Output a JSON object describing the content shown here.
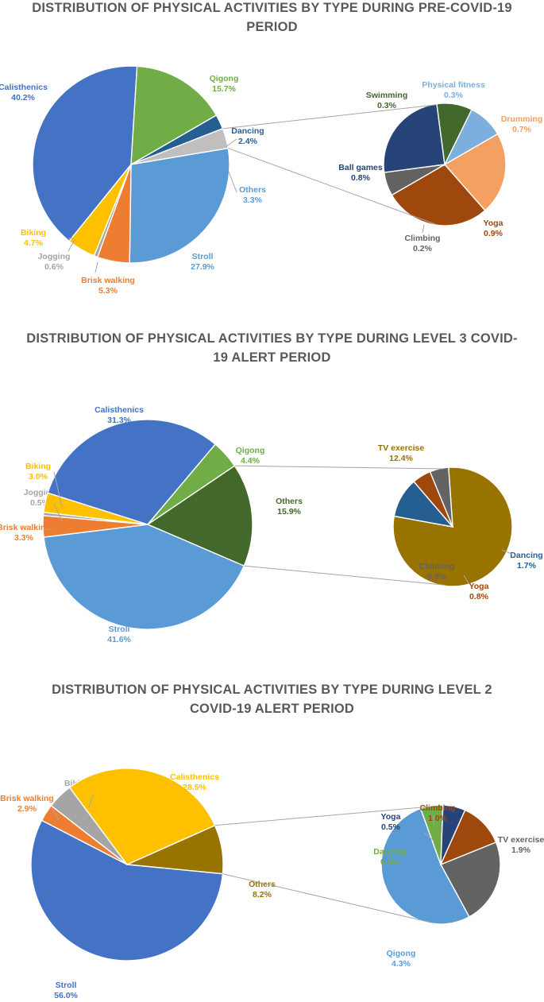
{
  "chart_data": [
    {
      "type": "pie",
      "subtype": "pie-of-pie",
      "title": "DISTRIBUTION OF PHYSICAL ACTIVITIES BY TYPE DURING PRE-COVID-19 PERIOD",
      "title_lines": [
        "DISTRIBUTION OF PHYSICAL ACTIVITIES BY TYPE DURING PRE-COVID-19",
        "PERIOD"
      ],
      "main_slices": [
        {
          "label": "Dancing",
          "value": 2.4,
          "value_text": "2.4%",
          "color": "#255E91"
        },
        {
          "label": "Others",
          "value": 3.3,
          "value_text": "3.3%",
          "color": "#BFBFBF"
        },
        {
          "label": "Stroll",
          "value": 27.9,
          "value_text": "27.9%",
          "color": "#5B9BD5"
        },
        {
          "label": "Brisk walking",
          "value": 5.3,
          "value_text": "5.3%",
          "color": "#ED7D31"
        },
        {
          "label": "Jogging",
          "value": 0.6,
          "value_text": "0.6%",
          "color": "#A5A5A5"
        },
        {
          "label": "Biking",
          "value": 4.7,
          "value_text": "4.7%",
          "color": "#FFC000"
        },
        {
          "label": "Calisthenics",
          "value": 40.2,
          "value_text": "40.2%",
          "color": "#4472C4"
        },
        {
          "label": "Qigong",
          "value": 15.7,
          "value_text": "15.7%",
          "color": "#70AD47"
        }
      ],
      "secondary_slices": [
        {
          "label": "Drumming",
          "value": 0.7,
          "value_text": "0.7%",
          "color": "#F4A061"
        },
        {
          "label": "Yoga",
          "value": 0.9,
          "value_text": "0.9%",
          "color": "#9E480E"
        },
        {
          "label": "Climbing",
          "value": 0.2,
          "value_text": "0.2%",
          "color": "#636363"
        },
        {
          "label": "Ball games",
          "value": 0.8,
          "value_text": "0.8%",
          "color": "#264478"
        },
        {
          "label": "Swimming",
          "value": 0.3,
          "value_text": "0.3%",
          "color": "#43682B"
        },
        {
          "label": "Physical fitness",
          "value": 0.3,
          "value_text": "0.3%",
          "color": "#7CAFDD"
        }
      ]
    },
    {
      "type": "pie",
      "subtype": "pie-of-pie",
      "title": "DISTRIBUTION OF PHYSICAL ACTIVITIES BY TYPE DURING LEVEL 3 COVID-19 ALERT PERIOD",
      "title_lines": [
        "DISTRIBUTION OF PHYSICAL ACTIVITIES BY TYPE DURING LEVEL 3 COVID-",
        "19 ALERT PERIOD"
      ],
      "main_slices": [
        {
          "label": "Others",
          "value": 15.9,
          "value_text": "15.9%",
          "color": "#43682B"
        },
        {
          "label": "Stroll",
          "value": 41.6,
          "value_text": "41.6%",
          "color": "#5B9BD5"
        },
        {
          "label": "Brisk walking",
          "value": 3.3,
          "value_text": "3.3%",
          "color": "#ED7D31"
        },
        {
          "label": "Jogging",
          "value": 0.5,
          "value_text": "0.5%",
          "color": "#A5A5A5"
        },
        {
          "label": "Biking",
          "value": 3.0,
          "value_text": "3.0%",
          "color": "#FFC000"
        },
        {
          "label": "Calisthenics",
          "value": 31.3,
          "value_text": "31.3%",
          "color": "#4472C4"
        },
        {
          "label": "Qigong",
          "value": 4.4,
          "value_text": "4.4%",
          "color": "#70AD47"
        }
      ],
      "secondary_slices": [
        {
          "label": "TV exercise",
          "value": 12.4,
          "value_text": "12.4%",
          "color": "#997300"
        },
        {
          "label": "Dancing",
          "value": 1.7,
          "value_text": "1.7%",
          "color": "#255E91"
        },
        {
          "label": "Yoga",
          "value": 0.8,
          "value_text": "0.8%",
          "color": "#9E480E"
        },
        {
          "label": "Climbing",
          "value": 0.8,
          "value_text": "0.8%",
          "color": "#636363"
        }
      ]
    },
    {
      "type": "pie",
      "subtype": "pie-of-pie",
      "title": "DISTRIBUTION OF PHYSICAL ACTIVITIES BY TYPE DURING LEVEL 2 COVID-19 ALERT PERIOD",
      "title_lines": [
        "DISTRIBUTION OF PHYSICAL ACTIVITIES BY TYPE DURING LEVEL 2",
        "COVID-19 ALERT PERIOD"
      ],
      "main_slices": [
        {
          "label": "Others",
          "value": 8.2,
          "value_text": "8.2%",
          "color": "#997300"
        },
        {
          "label": "Stroll",
          "value": 56.0,
          "value_text": "56.0%",
          "color": "#4472C4"
        },
        {
          "label": "Brisk walking",
          "value": 2.9,
          "value_text": "2.9%",
          "color": "#ED7D31"
        },
        {
          "label": "Biking",
          "value": 4.3,
          "value_text": "4.3%",
          "color": "#A5A5A5"
        },
        {
          "label": "Calisthenics",
          "value": 28.5,
          "value_text": "28.5%",
          "color": "#FFC000"
        }
      ],
      "secondary_slices": [
        {
          "label": "TV exercise",
          "value": 1.9,
          "value_text": "1.9%",
          "color": "#636363"
        },
        {
          "label": "Qigong",
          "value": 4.3,
          "value_text": "4.3%",
          "color": "#5B9BD5"
        },
        {
          "label": "Dancing",
          "value": 0.5,
          "value_text": "0.5%",
          "color": "#70AD47"
        },
        {
          "label": "Yoga",
          "value": 0.5,
          "value_text": "0.5%",
          "color": "#264478"
        },
        {
          "label": "Climbing",
          "value": 1.0,
          "value_text": "1.0%",
          "color": "#9E480E"
        }
      ]
    }
  ]
}
